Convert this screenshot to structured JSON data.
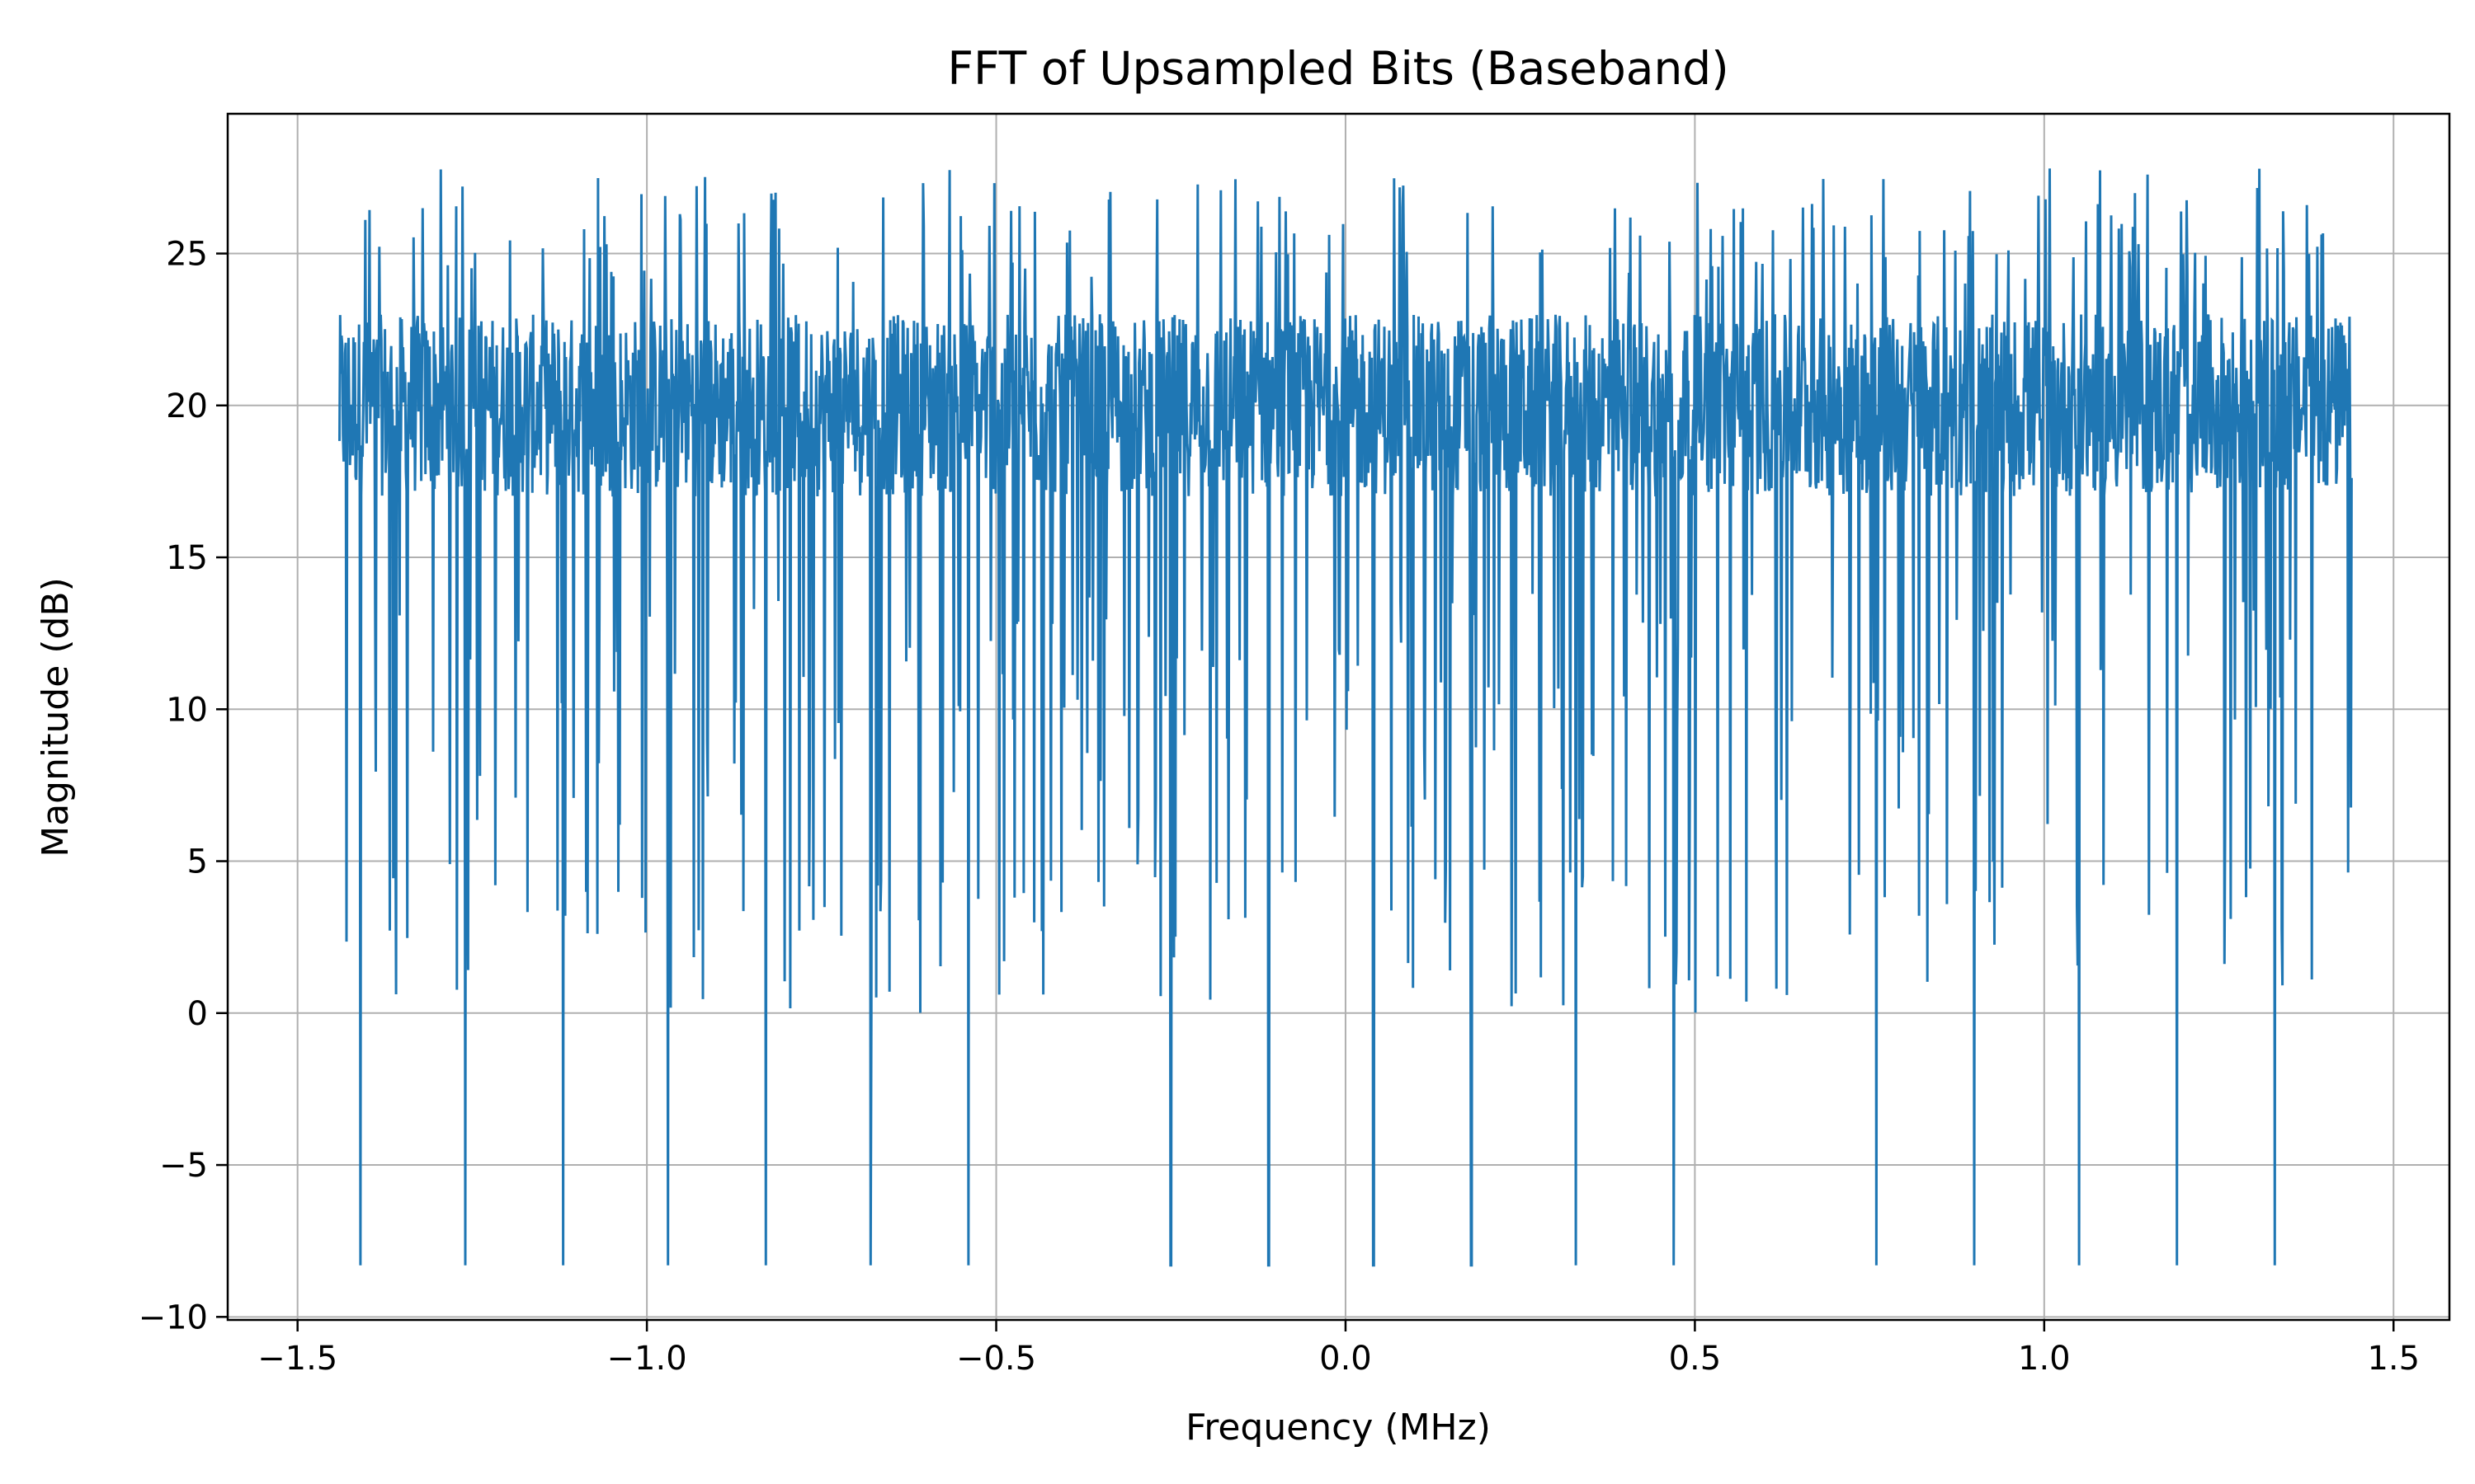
{
  "chart_data": {
    "type": "line",
    "title": "FFT of Upsampled Bits (Baseband)",
    "xlabel": "Frequency (MHz)",
    "ylabel": "Magnitude (dB)",
    "xlim": [
      -1.6,
      1.58
    ],
    "ylim": [
      -10.1,
      29.6
    ],
    "x_ticks": [
      -1.5,
      -1.0,
      -0.5,
      0.0,
      0.5,
      1.0,
      1.5
    ],
    "x_tick_labels": [
      "−1.5",
      "−1.0",
      "−0.5",
      "0.0",
      "0.5",
      "1.0",
      "1.5"
    ],
    "y_ticks": [
      -10,
      -5,
      0,
      5,
      10,
      15,
      20,
      25
    ],
    "y_tick_labels": [
      "−10",
      "−5",
      "0",
      "5",
      "10",
      "15",
      "20",
      "25"
    ],
    "grid": true,
    "colors": {
      "line": "#1f77b4",
      "grid": "#b0b0b0",
      "axes": "#000000"
    },
    "series": [
      {
        "x_start": -1.44,
        "x_end": 1.44,
        "points": 2880,
        "upper_envelope": [
          {
            "x": -1.44,
            "y": 23.3
          },
          {
            "x": -1.43,
            "y": 27.8
          },
          {
            "x": -1.41,
            "y": 27.3
          },
          {
            "x": -1.33,
            "y": 27.6
          },
          {
            "x": -1.28,
            "y": 27.8
          },
          {
            "x": -1.13,
            "y": 27.8
          },
          {
            "x": -1.0,
            "y": 27.8
          },
          {
            "x": -0.86,
            "y": 27.8
          },
          {
            "x": -0.56,
            "y": 27.7
          },
          {
            "x": -0.28,
            "y": 27.6
          },
          {
            "x": 0.0,
            "y": 27.8
          },
          {
            "x": 0.3,
            "y": 27.5
          },
          {
            "x": 0.59,
            "y": 27.7
          },
          {
            "x": 1.0,
            "y": 27.8
          },
          {
            "x": 1.29,
            "y": 27.7
          },
          {
            "x": 1.42,
            "y": 26.7
          },
          {
            "x": 1.44,
            "y": 24.1
          }
        ],
        "deep_nulls": [
          {
            "x": -1.41,
            "y": -8.3
          },
          {
            "x": -1.26,
            "y": -8.3
          },
          {
            "x": -1.12,
            "y": -8.3
          },
          {
            "x": -0.97,
            "y": -8.3
          },
          {
            "x": -0.83,
            "y": -8.3
          },
          {
            "x": -0.68,
            "y": -8.3
          },
          {
            "x": -0.54,
            "y": -8.3
          },
          {
            "x": -0.25,
            "y": -8.3
          },
          {
            "x": -0.11,
            "y": -8.3
          },
          {
            "x": 0.04,
            "y": -8.3
          },
          {
            "x": 0.18,
            "y": -8.3
          },
          {
            "x": 0.33,
            "y": -8.3
          },
          {
            "x": 0.47,
            "y": -8.3
          },
          {
            "x": 0.76,
            "y": -8.3
          },
          {
            "x": 0.9,
            "y": -8.3
          },
          {
            "x": 1.05,
            "y": -8.3
          },
          {
            "x": 1.19,
            "y": -8.3
          },
          {
            "x": 1.33,
            "y": -8.3
          }
        ],
        "band_center": 20.0,
        "band_low": 17.0,
        "band_high": 23.0
      }
    ]
  }
}
